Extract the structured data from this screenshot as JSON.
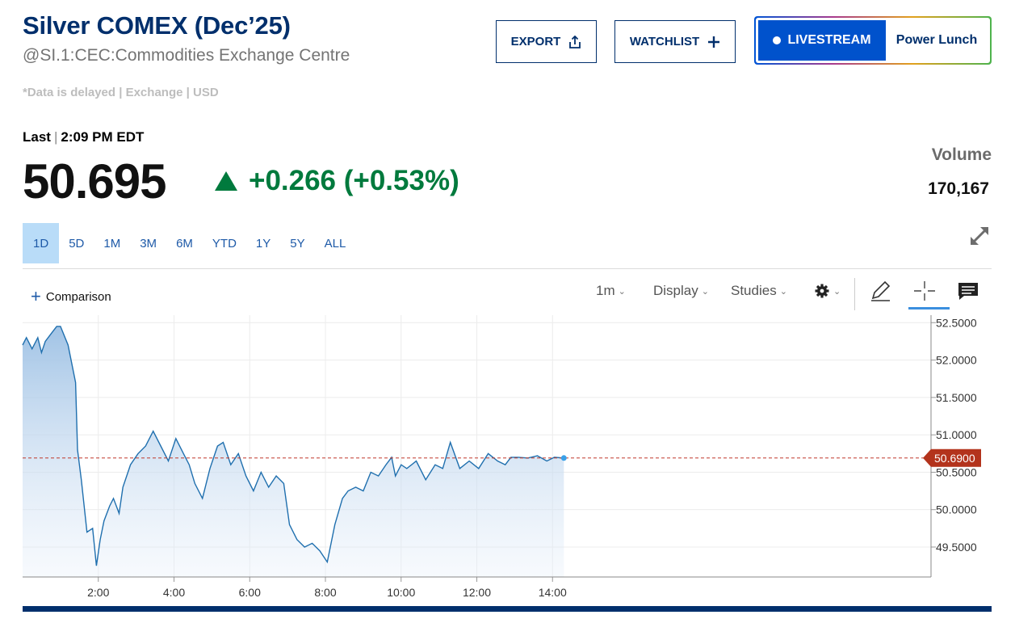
{
  "header": {
    "title": "Silver COMEX (Dec’25)",
    "subtitle": "@SI.1:CEC:Commodities Exchange Centre",
    "disclaimer": "*Data is delayed | Exchange | USD",
    "export_label": "EXPORT",
    "watchlist_label": "WATCHLIST",
    "livestream_label": "LIVESTREAM",
    "show_label": "Power Lunch"
  },
  "quote": {
    "last_label": "Last",
    "last_time": "2:09 PM EDT",
    "price": "50.695",
    "change": "+0.266 (+0.53%)",
    "volume_label": "Volume",
    "volume_value": "170,167"
  },
  "ranges": [
    "1D",
    "5D",
    "1M",
    "3M",
    "6M",
    "YTD",
    "1Y",
    "5Y",
    "ALL"
  ],
  "active_range": "1D",
  "toolbar": {
    "comparison_label": "Comparison",
    "interval_label": "1m",
    "display_label": "Display",
    "studies_label": "Studies",
    "icons": [
      "settings-icon",
      "pencil-icon",
      "crosshair-icon",
      "comment-icon",
      "expand-icon"
    ]
  },
  "colors": {
    "brand": "#002f6c",
    "up": "#007a3d",
    "line": "#1f6fae",
    "price_marker": "#b3331c",
    "active_range_bg": "#b9dcf8"
  },
  "chart_data": {
    "type": "area",
    "x_label_ticks": [
      "2:00",
      "4:00",
      "6:00",
      "8:00",
      "10:00",
      "12:00",
      "14:00"
    ],
    "y_ticks": [
      "52.5000",
      "52.0000",
      "51.5000",
      "51.0000",
      "50.5000",
      "50.0000",
      "49.5000"
    ],
    "ylim": [
      49.1,
      52.6
    ],
    "xlim_hours": [
      0,
      24
    ],
    "current_price_label": "50.6900",
    "current_price": 50.69,
    "grid": true,
    "series": [
      {
        "x_hours": [
          0,
          0.1,
          0.25,
          0.4,
          0.5,
          0.6,
          0.75,
          0.9,
          1.0,
          1.2,
          1.4,
          1.45,
          1.55,
          1.7,
          1.85,
          1.95,
          2.05,
          2.15,
          2.3,
          2.4,
          2.55,
          2.65,
          2.85,
          3.05,
          3.25,
          3.45,
          3.65,
          3.85,
          4.05,
          4.25,
          4.4,
          4.55,
          4.75,
          4.95,
          5.15,
          5.3,
          5.5,
          5.7,
          5.9,
          6.1,
          6.3,
          6.5,
          6.7,
          6.9,
          7.05,
          7.25,
          7.45,
          7.65,
          7.85,
          8.05,
          8.25,
          8.45,
          8.6,
          8.8,
          9.0,
          9.2,
          9.4,
          9.6,
          9.75,
          9.85,
          10.0,
          10.15,
          10.4,
          10.65,
          10.9,
          11.1,
          11.3,
          11.55,
          11.8,
          12.05,
          12.3,
          12.55,
          12.75,
          12.9,
          13.1,
          13.35,
          13.6,
          13.85,
          14.05,
          14.3
        ],
        "values": [
          52.2,
          52.3,
          52.15,
          52.3,
          52.1,
          52.25,
          52.35,
          52.45,
          52.45,
          52.2,
          51.7,
          50.8,
          50.4,
          49.7,
          49.75,
          49.25,
          49.6,
          49.85,
          50.05,
          50.15,
          49.95,
          50.3,
          50.6,
          50.75,
          50.85,
          51.05,
          50.85,
          50.65,
          50.95,
          50.75,
          50.6,
          50.35,
          50.15,
          50.55,
          50.85,
          50.9,
          50.6,
          50.75,
          50.45,
          50.25,
          50.5,
          50.3,
          50.45,
          50.35,
          49.8,
          49.6,
          49.5,
          49.55,
          49.45,
          49.3,
          49.8,
          50.15,
          50.25,
          50.3,
          50.25,
          50.5,
          50.45,
          50.6,
          50.7,
          50.45,
          50.6,
          50.55,
          50.65,
          50.4,
          50.6,
          50.55,
          50.9,
          50.55,
          50.65,
          50.55,
          50.75,
          50.65,
          50.6,
          50.7,
          50.7,
          50.69,
          50.72,
          50.65,
          50.7,
          50.69
        ]
      }
    ]
  }
}
